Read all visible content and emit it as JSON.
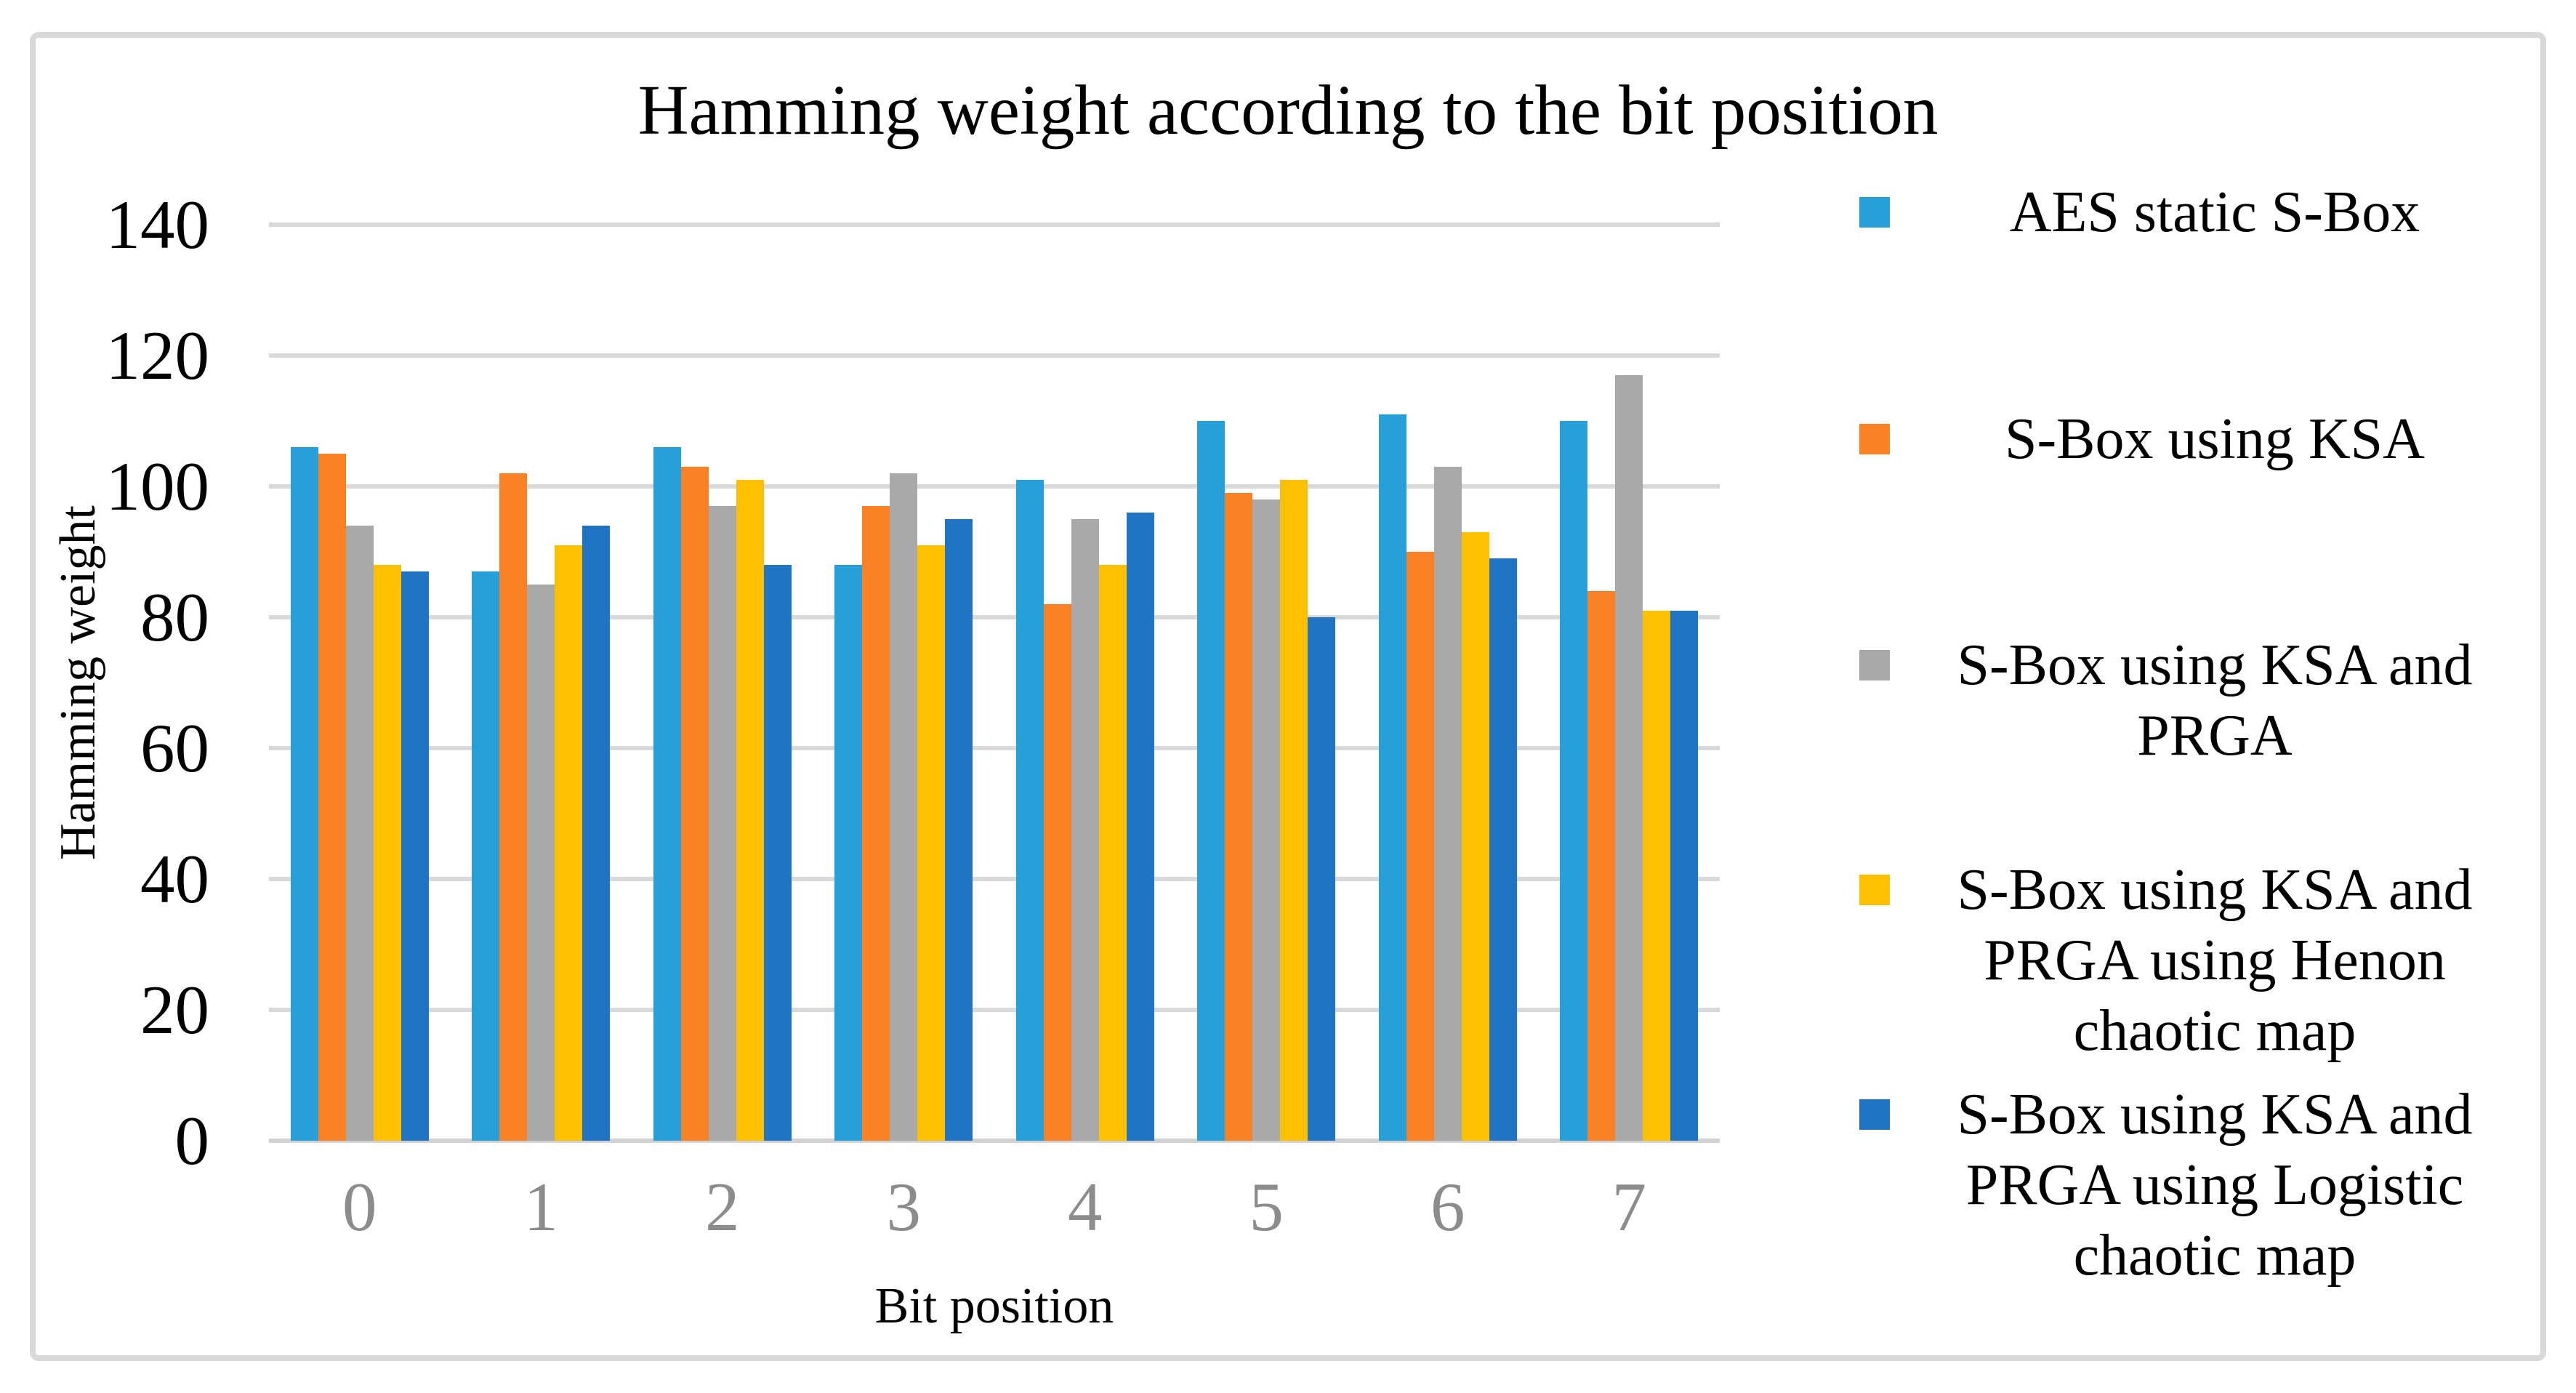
{
  "title": "Hamming weight according to the bit position",
  "chart_data": {
    "type": "bar",
    "title": "Hamming weight according to the bit position",
    "xlabel": "Bit position",
    "ylabel": "Hamming weight",
    "categories": [
      "0",
      "1",
      "2",
      "3",
      "4",
      "5",
      "6",
      "7"
    ],
    "ylim": [
      0,
      140
    ],
    "y_tick_step": 20,
    "y_ticks": [
      0,
      20,
      40,
      60,
      80,
      100,
      120,
      140
    ],
    "grid": true,
    "legend_position": "right",
    "series": [
      {
        "name": "AES static S-Box",
        "legend_lines": [
          "AES static S-Box"
        ],
        "color": "#27a0da",
        "values": [
          106,
          87,
          106,
          88,
          101,
          110,
          111,
          110
        ]
      },
      {
        "name": "S-Box using KSA",
        "legend_lines": [
          "S-Box using KSA"
        ],
        "color": "#fb8124",
        "values": [
          105,
          102,
          103,
          97,
          82,
          99,
          90,
          84
        ]
      },
      {
        "name": "S-Box using KSA and PRGA",
        "legend_lines": [
          "S-Box using KSA and",
          "PRGA"
        ],
        "color": "#a9a9a9",
        "values": [
          94,
          85,
          97,
          102,
          95,
          98,
          103,
          117
        ]
      },
      {
        "name": "S-Box using KSA and PRGA using Henon chaotic map",
        "legend_lines": [
          "S-Box using KSA and",
          "PRGA using Henon",
          "chaotic map"
        ],
        "color": "#fec001",
        "values": [
          88,
          91,
          101,
          91,
          88,
          101,
          93,
          81
        ]
      },
      {
        "name": "S-Box using KSA and PRGA using Logistic chaotic map",
        "legend_lines": [
          "S-Box using KSA and",
          "PRGA using Logistic",
          "chaotic map"
        ],
        "color": "#2173c4",
        "values": [
          87,
          94,
          88,
          95,
          96,
          80,
          89,
          81
        ]
      }
    ]
  },
  "style_colors": {
    "gridline": "#d9d9d9",
    "axis_line": "#d2d2d2",
    "frame_border": "#d9d9d9",
    "x_tick_text": "#8c8c8c",
    "y_tick_text": "#000000",
    "title_text": "#000000"
  }
}
